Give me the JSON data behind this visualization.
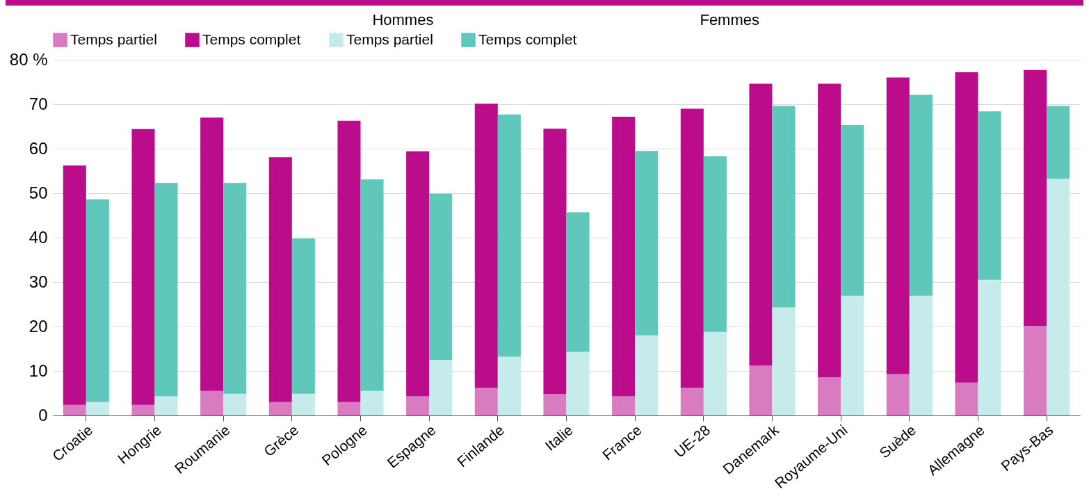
{
  "chart_data": {
    "type": "bar",
    "stacked": true,
    "categories": [
      "Croatie",
      null,
      "Hongrie",
      null,
      "Roumanie",
      null,
      "Grèce",
      null,
      "Pologne",
      null,
      "Espagne",
      null,
      "Finlande",
      null,
      "Italie",
      null,
      "France",
      null,
      "UE-28",
      null,
      "Danemark",
      null,
      "Royaume-Uni",
      null,
      "Suède",
      null,
      "Allemagne",
      null,
      "Pays-Bas",
      null
    ],
    "series": [
      {
        "name": "Temps partiel",
        "color": "#d97bc0",
        "values": [
          2.4,
          null,
          2.4,
          null,
          5.5,
          null,
          3.0,
          null,
          3.0,
          null,
          4.3,
          null,
          6.2,
          null,
          4.8,
          null,
          4.3,
          null,
          6.2,
          null,
          11.2,
          null,
          8.6,
          null,
          9.3,
          null,
          7.4,
          null,
          20.1,
          null
        ]
      },
      {
        "name": "Temps complet",
        "color": "#bb0d8b",
        "values": [
          53.8,
          null,
          62.0,
          null,
          61.5,
          null,
          55.1,
          null,
          63.3,
          null,
          55.1,
          null,
          63.9,
          null,
          59.7,
          null,
          62.9,
          null,
          62.8,
          null,
          63.4,
          null,
          66.0,
          null,
          66.7,
          null,
          69.8,
          null,
          57.6,
          null
        ]
      },
      {
        "name": "Temps partiel",
        "color": "#c5ebea",
        "values": [
          null,
          3.0,
          null,
          4.3,
          null,
          4.9,
          null,
          4.9,
          null,
          5.5,
          null,
          12.5,
          null,
          13.2,
          null,
          14.3,
          null,
          18.0,
          null,
          18.8,
          null,
          24.3,
          null,
          26.9,
          null,
          26.9,
          null,
          30.5,
          null,
          53.2
        ]
      },
      {
        "name": "Temps complet",
        "color": "#5fc8bb",
        "values": [
          null,
          45.6,
          null,
          48.0,
          null,
          47.4,
          null,
          34.9,
          null,
          47.6,
          null,
          37.4,
          null,
          54.5,
          null,
          31.4,
          null,
          41.5,
          null,
          39.5,
          null,
          45.3,
          null,
          38.4,
          null,
          45.2,
          null,
          37.9,
          null,
          16.4
        ]
      }
    ],
    "annotations": [
      "Hommes",
      "Femmes"
    ],
    "ylim": [
      0,
      80
    ],
    "yticks": [
      0,
      10,
      20,
      30,
      40,
      50,
      60,
      70,
      {
        "value": 80,
        "label": "80 %"
      }
    ],
    "grid": "y",
    "legend": "top"
  }
}
